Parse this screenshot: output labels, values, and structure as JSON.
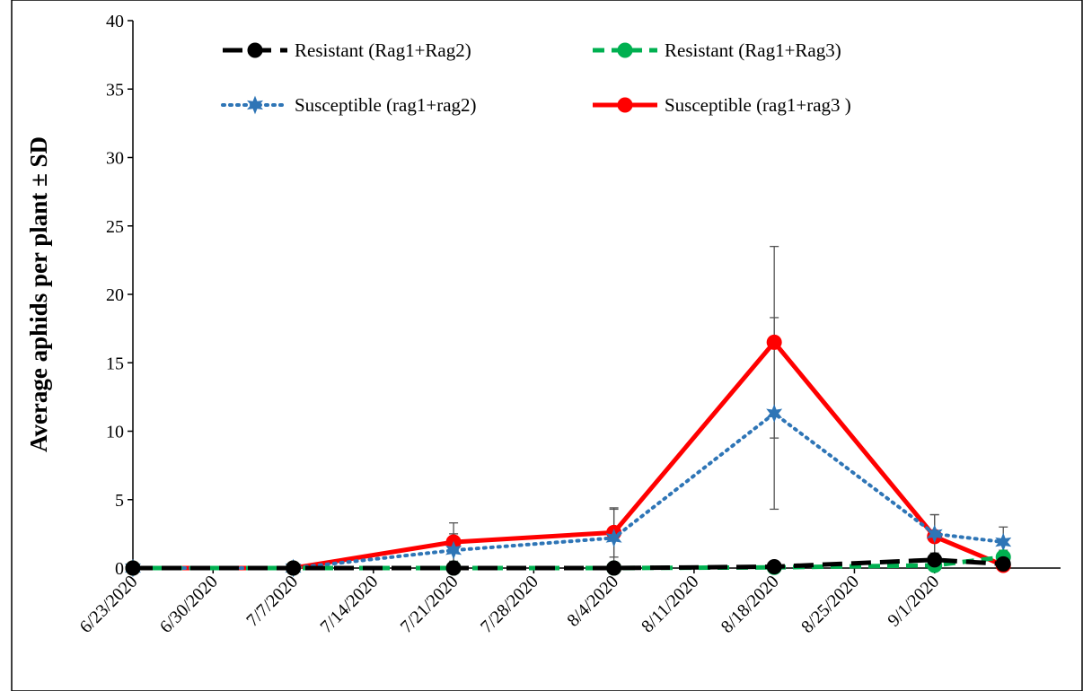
{
  "chart_data": {
    "type": "line",
    "title": "",
    "xlabel": "",
    "ylabel": "Average aphids per plant ± SD",
    "ylim": [
      0,
      40
    ],
    "yticks": [
      0,
      5,
      10,
      15,
      20,
      25,
      30,
      35,
      40
    ],
    "xlim": [
      "2020-06-23",
      "2020-09-12"
    ],
    "xtick_labels": [
      "6/23/2020",
      "6/30/2020",
      "7/7/2020",
      "7/14/2020",
      "7/21/2020",
      "7/28/2020",
      "8/4/2020",
      "8/11/2020",
      "8/18/2020",
      "8/25/2020",
      "9/1/2020"
    ],
    "xtick_dates": [
      "2020-06-23",
      "2020-06-30",
      "2020-07-07",
      "2020-07-14",
      "2020-07-21",
      "2020-07-28",
      "2020-08-04",
      "2020-08-11",
      "2020-08-18",
      "2020-08-25",
      "2020-09-01"
    ],
    "grid": false,
    "legend_position": "top",
    "series": [
      {
        "name": "Resistant (Rag1+Rag2)",
        "color": "#000000",
        "line_style": "long-dash",
        "marker": "circle",
        "x": [
          "2020-06-23",
          "2020-07-07",
          "2020-07-21",
          "2020-08-04",
          "2020-08-18",
          "2020-09-01",
          "2020-09-07"
        ],
        "y": [
          0,
          0,
          0,
          0,
          0.1,
          0.6,
          0.3
        ],
        "sd": [
          0,
          0,
          0,
          0,
          0.1,
          0.4,
          0.3
        ]
      },
      {
        "name": "Resistant (Rag1+Rag3)",
        "color": "#00B050",
        "line_style": "dash",
        "marker": "circle",
        "x": [
          "2020-06-23",
          "2020-07-07",
          "2020-07-21",
          "2020-08-04",
          "2020-08-18",
          "2020-09-01",
          "2020-09-07"
        ],
        "y": [
          0,
          0,
          0,
          0,
          0.05,
          0.2,
          0.8
        ],
        "sd": [
          0,
          0,
          0,
          0,
          0.05,
          0.2,
          0.5
        ]
      },
      {
        "name": "Susceptible (rag1+rag2)",
        "color": "#2E75B6",
        "line_style": "dotted",
        "marker": "star",
        "x": [
          "2020-06-23",
          "2020-07-07",
          "2020-07-21",
          "2020-08-04",
          "2020-08-18",
          "2020-09-01",
          "2020-09-07"
        ],
        "y": [
          0,
          0,
          1.3,
          2.2,
          11.3,
          2.5,
          1.9
        ],
        "sd": [
          0,
          0,
          1.2,
          2.1,
          7.0,
          1.4,
          1.1
        ]
      },
      {
        "name": "Susceptible (rag1+rag3 )",
        "color": "#FF0000",
        "line_style": "solid",
        "marker": "circle",
        "x": [
          "2020-06-23",
          "2020-07-07",
          "2020-07-21",
          "2020-08-04",
          "2020-08-18",
          "2020-09-01",
          "2020-09-07"
        ],
        "y": [
          0,
          0,
          1.9,
          2.6,
          16.5,
          2.3,
          0.2
        ],
        "sd": [
          0,
          0,
          1.4,
          1.8,
          7.0,
          1.6,
          0.3
        ]
      }
    ]
  }
}
